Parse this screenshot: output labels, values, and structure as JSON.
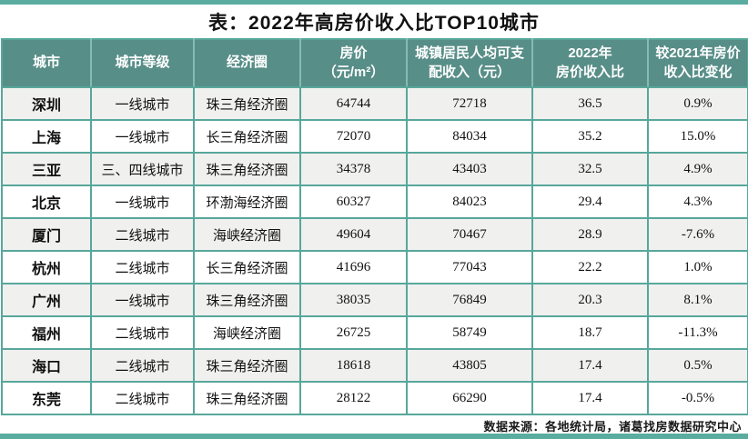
{
  "title": "表：2022年高房价收入比TOP10城市",
  "footer": {
    "source": "数据来源：各地统计局，诸葛找房数据研究中心"
  },
  "colors": {
    "accent_strip": "#5BACA0",
    "header_bg": "#588E88",
    "table_border": "#57A79B",
    "alt_row_bg": "#F0F0EF"
  },
  "chart_data": {
    "type": "table",
    "title": "表：2022年高房价收入比TOP10城市",
    "columns": [
      "城市",
      "城市等级",
      "经济圈",
      "房价\n（元/m²）",
      "城镇居民人均可支\n配收入（元）",
      "2022年\n房价收入比",
      "较2021年房价\n收入比变化"
    ],
    "rows": [
      [
        "深圳",
        "一线城市",
        "珠三角经济圈",
        "64744",
        "72718",
        "36.5",
        "0.9%"
      ],
      [
        "上海",
        "一线城市",
        "长三角经济圈",
        "72070",
        "84034",
        "35.2",
        "15.0%"
      ],
      [
        "三亚",
        "三、四线城市",
        "珠三角经济圈",
        "34378",
        "43403",
        "32.5",
        "4.9%"
      ],
      [
        "北京",
        "一线城市",
        "环渤海经济圈",
        "60327",
        "84023",
        "29.4",
        "4.3%"
      ],
      [
        "厦门",
        "二线城市",
        "海峡经济圈",
        "49604",
        "70467",
        "28.9",
        "-7.6%"
      ],
      [
        "杭州",
        "二线城市",
        "长三角经济圈",
        "41696",
        "77043",
        "22.2",
        "1.0%"
      ],
      [
        "广州",
        "一线城市",
        "珠三角经济圈",
        "38035",
        "76849",
        "20.3",
        "8.1%"
      ],
      [
        "福州",
        "二线城市",
        "海峡经济圈",
        "26725",
        "58749",
        "18.7",
        "-11.3%"
      ],
      [
        "海口",
        "二线城市",
        "珠三角经济圈",
        "18618",
        "43805",
        "17.4",
        "0.5%"
      ],
      [
        "东莞",
        "二线城市",
        "珠三角经济圈",
        "28122",
        "66290",
        "17.4",
        "-0.5%"
      ]
    ]
  }
}
